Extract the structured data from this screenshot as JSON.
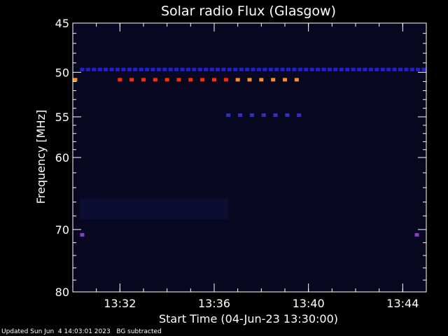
{
  "chart_data": {
    "type": "heatmap",
    "title": "Solar radio Flux (Glasgow)",
    "xlabel": "Start Time (04-Jun-23 13:30:00)",
    "ylabel": "Frequency [MHz]",
    "x_unit": "minutes after 13:30:00",
    "xlim": [
      0.0,
      15.0
    ],
    "ylim": [
      80,
      45
    ],
    "y_scale": "log",
    "x_ticks": [
      {
        "value": 2,
        "label": "13:32"
      },
      {
        "value": 6,
        "label": "13:36"
      },
      {
        "value": 10,
        "label": "13:40"
      },
      {
        "value": 14,
        "label": "13:44"
      }
    ],
    "y_ticks": [
      {
        "value": 45,
        "label": "45"
      },
      {
        "value": 50,
        "label": "50"
      },
      {
        "value": 55,
        "label": "55"
      },
      {
        "value": 60,
        "label": "60"
      },
      {
        "value": 70,
        "label": "70"
      },
      {
        "value": 80,
        "label": "80"
      }
    ],
    "background_color": "#07071e",
    "features": [
      {
        "freq": 50.8,
        "t_start": 2.0,
        "t_end": 9.8,
        "step": 0.5,
        "color": "#ff2a10",
        "color_alt": "#ff8c30",
        "alt_from": 6.6
      },
      {
        "freq": 50.8,
        "t_start": 0.1,
        "t_end": 0.25,
        "step": 1,
        "color": "#ff9a20"
      },
      {
        "freq": 49.7,
        "t_start": 0.4,
        "t_end": 14.9,
        "step": 0.25,
        "color": "#2020d0"
      },
      {
        "freq": 54.8,
        "t_start": 6.6,
        "t_end": 9.8,
        "step": 0.5,
        "color": "#3030c0"
      },
      {
        "freq": 70.8,
        "t_start": 0.4,
        "t_end": 0.5,
        "step": 1,
        "color": "#8040c0"
      },
      {
        "freq": 70.8,
        "t_start": 14.6,
        "t_end": 14.7,
        "step": 1,
        "color": "#8040c0"
      }
    ]
  },
  "footer": {
    "updated": "Updated Sun Jun  4 14:03:01 2023",
    "mode": "BG subtracted"
  }
}
